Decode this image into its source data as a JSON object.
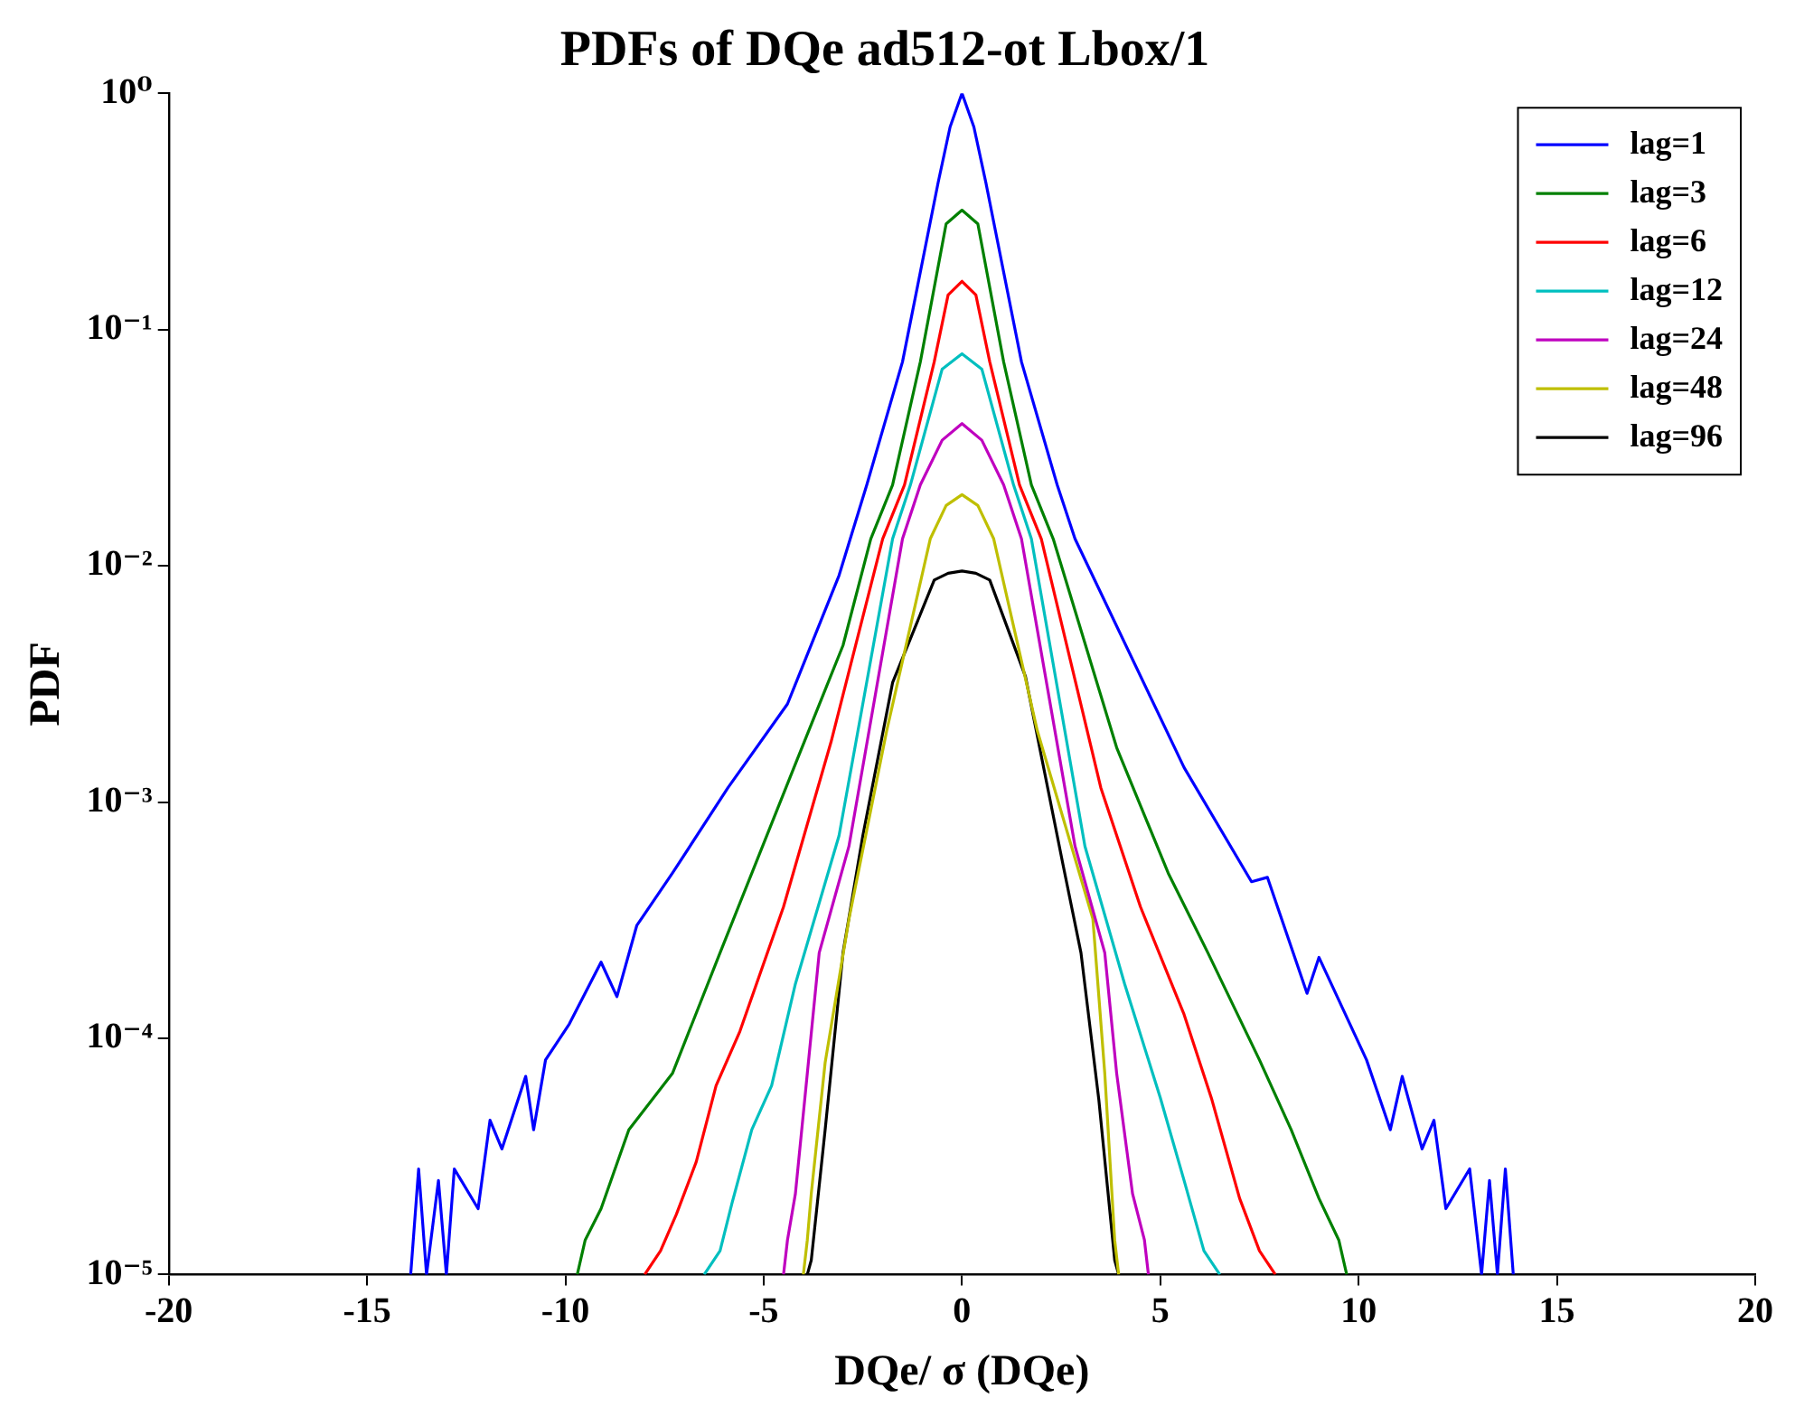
{
  "chart_data": {
    "type": "line",
    "title": "PDFs of DQe ad512-ot Lbox/1",
    "xlabel": "DQe/ σ (DQe)",
    "ylabel": "PDF",
    "log": "y",
    "grid": false,
    "legend": "top right",
    "marker": "none",
    "line_style": "solid",
    "xlim": [
      -20,
      20
    ],
    "xticks": [
      -20,
      -15,
      -10,
      -5,
      0,
      5,
      10,
      15,
      20
    ],
    "ylim": [
      1e-05,
      1
    ],
    "yticks": [
      {
        "value": 1e-05,
        "label": "10⁻⁵"
      },
      {
        "value": 0.0001,
        "label": "10⁻⁴"
      },
      {
        "value": 0.001,
        "label": "10⁻³"
      },
      {
        "value": 0.01,
        "label": "10⁻²"
      },
      {
        "value": 0.1,
        "label": "10⁻¹"
      },
      {
        "value": 1,
        "label": "10⁰"
      }
    ],
    "series": [
      {
        "name": "lag=1",
        "color": "#0000ff",
        "x": [
          -13.9,
          -13.7,
          -13.5,
          -13.2,
          -13.0,
          -12.8,
          -12.2,
          -11.9,
          -11.6,
          -11.0,
          -10.8,
          -10.5,
          -9.9,
          -9.1,
          -8.7,
          -8.2,
          -7.3,
          -5.9,
          -4.4,
          -3.1,
          -2.4,
          -1.5,
          -0.6,
          -0.3,
          0,
          0.3,
          0.6,
          1.5,
          2.4,
          2.85,
          5.6,
          7.3,
          7.7,
          8.7,
          9.0,
          10.2,
          10.8,
          11.1,
          11.6,
          11.9,
          12.2,
          12.8,
          13.1,
          13.3,
          13.5,
          13.7,
          13.9
        ],
        "values": [
          1e-05,
          2.8e-05,
          1e-05,
          2.5e-05,
          1e-05,
          2.8e-05,
          1.9e-05,
          4.5e-05,
          3.4e-05,
          6.9e-05,
          4.1e-05,
          8.1e-05,
          0.000115,
          0.00021,
          0.00015,
          0.0003,
          0.0005,
          0.00115,
          0.0026,
          0.0091,
          0.022,
          0.073,
          0.42,
          0.72,
          1.0,
          0.72,
          0.42,
          0.073,
          0.022,
          0.013,
          0.0014,
          0.00046,
          0.00048,
          0.000155,
          0.00022,
          8.1e-05,
          4.1e-05,
          6.9e-05,
          3.4e-05,
          4.5e-05,
          1.9e-05,
          2.8e-05,
          1e-05,
          2.5e-05,
          1e-05,
          2.8e-05,
          1e-05
        ]
      },
      {
        "name": "lag=3",
        "color": "#008000",
        "x": [
          -9.7,
          -9.5,
          -9.1,
          -8.4,
          -7.3,
          -6.1,
          -4.2,
          -3.0,
          -2.3,
          -1.75,
          -1.05,
          -0.4,
          0,
          0.4,
          1.05,
          1.75,
          2.3,
          3.9,
          5.2,
          6.2,
          7.5,
          8.3,
          9.0,
          9.5,
          9.7
        ],
        "values": [
          1e-05,
          1.4e-05,
          1.9e-05,
          4.1e-05,
          7.1e-05,
          0.00023,
          0.00145,
          0.0046,
          0.013,
          0.022,
          0.073,
          0.28,
          0.32,
          0.28,
          0.073,
          0.022,
          0.013,
          0.0017,
          0.0005,
          0.00023,
          8.1e-05,
          4.1e-05,
          2.1e-05,
          1.4e-05,
          1e-05
        ]
      },
      {
        "name": "lag=6",
        "color": "#ff0000",
        "x": [
          -8.0,
          -7.6,
          -7.2,
          -6.7,
          -6.2,
          -5.6,
          -4.5,
          -3.3,
          -2.0,
          -1.45,
          -0.7,
          -0.35,
          0,
          0.35,
          0.7,
          1.45,
          2.0,
          3.5,
          4.5,
          5.6,
          6.3,
          7.0,
          7.5,
          7.9
        ],
        "values": [
          1e-05,
          1.26e-05,
          1.8e-05,
          3e-05,
          6.3e-05,
          0.000107,
          0.00036,
          0.0018,
          0.013,
          0.022,
          0.073,
          0.14,
          0.16,
          0.14,
          0.073,
          0.022,
          0.013,
          0.00115,
          0.00036,
          0.000126,
          5.5e-05,
          2.1e-05,
          1.26e-05,
          1e-05
        ]
      },
      {
        "name": "lag=12",
        "color": "#00bfbf",
        "x": [
          -6.5,
          -6.1,
          -5.8,
          -5.3,
          -4.8,
          -4.2,
          -3.1,
          -1.75,
          -1.3,
          -0.5,
          0,
          0.5,
          1.3,
          1.75,
          3.1,
          4.1,
          5.0,
          5.6,
          6.1,
          6.5
        ],
        "values": [
          1e-05,
          1.26e-05,
          2e-05,
          4.1e-05,
          6.3e-05,
          0.00017,
          0.00072,
          0.013,
          0.022,
          0.068,
          0.079,
          0.068,
          0.022,
          0.013,
          0.00065,
          0.00017,
          5.6e-05,
          2.5e-05,
          1.26e-05,
          1e-05
        ]
      },
      {
        "name": "lag=24",
        "color": "#bf00bf",
        "x": [
          -4.5,
          -4.4,
          -4.2,
          -3.9,
          -3.6,
          -2.85,
          -1.5,
          -1.05,
          -0.5,
          0,
          0.5,
          1.05,
          1.5,
          2.85,
          3.6,
          3.9,
          4.3,
          4.6,
          4.7
        ],
        "values": [
          1e-05,
          1.4e-05,
          2.2e-05,
          7.1e-05,
          0.00023,
          0.00065,
          0.013,
          0.022,
          0.034,
          0.04,
          0.034,
          0.022,
          0.013,
          0.00065,
          0.00023,
          7.1e-05,
          2.2e-05,
          1.4e-05,
          1e-05
        ]
      },
      {
        "name": "lag=48",
        "color": "#bfbf00",
        "x": [
          -4.0,
          -3.9,
          -3.8,
          -3.45,
          -2.85,
          -1.9,
          -0.8,
          -0.4,
          0,
          0.4,
          0.8,
          1.9,
          3.3,
          3.6,
          3.85,
          3.95
        ],
        "values": [
          1e-05,
          1.4e-05,
          2.2e-05,
          7.9e-05,
          0.00032,
          0.002,
          0.013,
          0.018,
          0.02,
          0.018,
          0.013,
          0.002,
          0.00032,
          7.1e-05,
          1.4e-05,
          1e-05
        ]
      },
      {
        "name": "lag=96",
        "color": "#000000",
        "x": [
          -3.9,
          -3.8,
          -3.45,
          -3.0,
          -2.5,
          -1.75,
          -0.7,
          -0.35,
          0,
          0.35,
          0.7,
          1.6,
          2.55,
          3.0,
          3.45,
          3.85,
          3.95
        ],
        "values": [
          1e-05,
          1.15e-05,
          4.1e-05,
          0.00023,
          0.00072,
          0.0032,
          0.0087,
          0.0093,
          0.0095,
          0.0093,
          0.0087,
          0.0034,
          0.00054,
          0.00023,
          5.5e-05,
          1.15e-05,
          1e-05
        ]
      }
    ]
  }
}
